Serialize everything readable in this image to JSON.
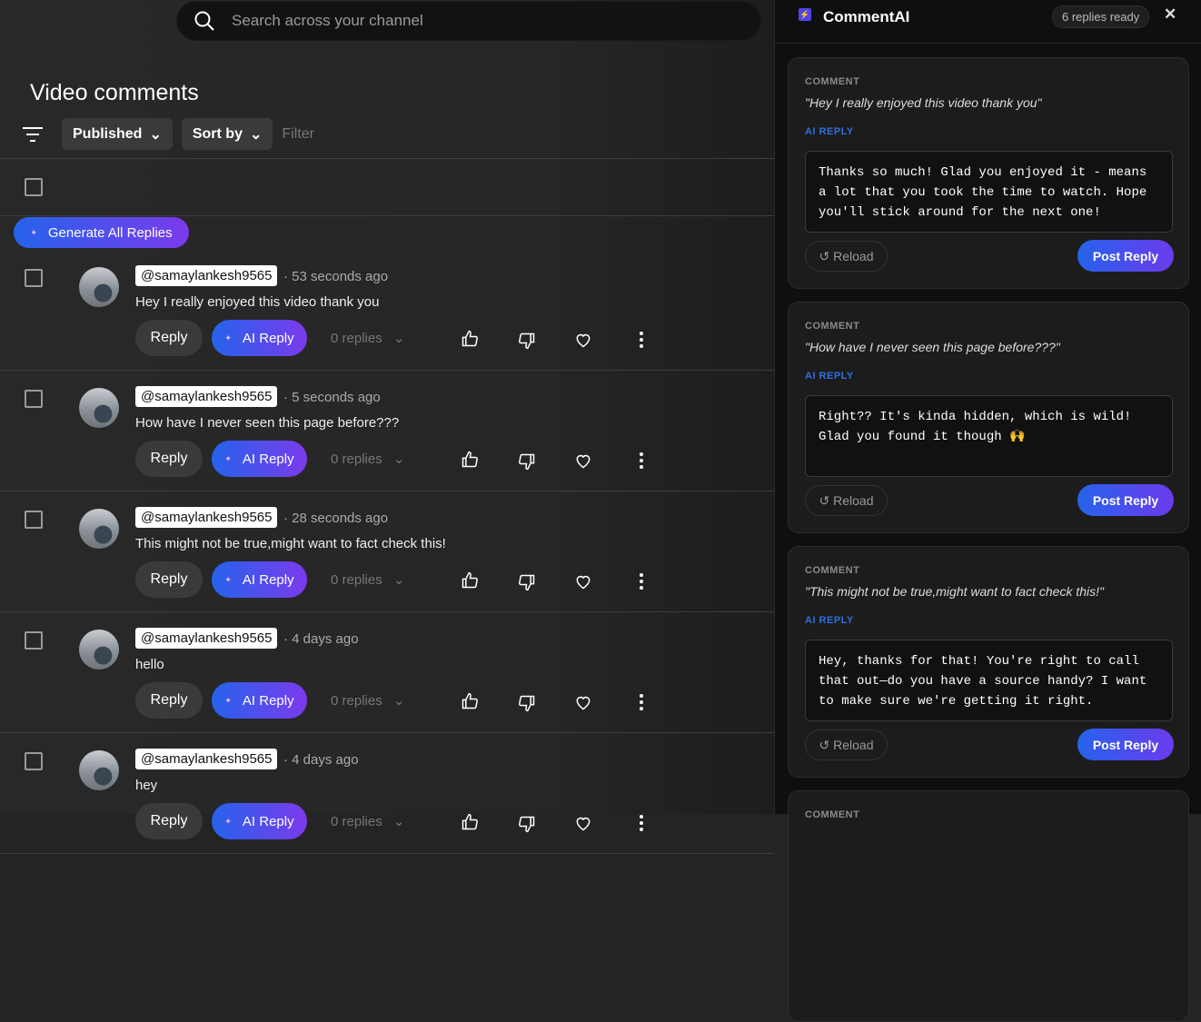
{
  "search": {
    "placeholder": "Search across your channel"
  },
  "page_title": "Video comments",
  "filters": {
    "published": "Published",
    "sort_by": "Sort by",
    "filter_placeholder": "Filter"
  },
  "generate_all": "Generate All Replies",
  "comments": [
    {
      "author": "@samaylankesh9565",
      "time": "53 seconds ago",
      "text": "Hey I really  enjoyed this video thank you",
      "reply": "Reply",
      "ai_reply": "AI Reply",
      "replies": "0 replies"
    },
    {
      "author": "@samaylankesh9565",
      "time": "5 seconds ago",
      "text": "How have I never seen this page before???",
      "reply": "Reply",
      "ai_reply": "AI Reply",
      "replies": "0 replies"
    },
    {
      "author": "@samaylankesh9565",
      "time": "28 seconds ago",
      "text": "This might not be true,might want to fact check this!",
      "reply": "Reply",
      "ai_reply": "AI Reply",
      "replies": "0 replies"
    },
    {
      "author": "@samaylankesh9565",
      "time": "4 days ago",
      "text": "hello",
      "reply": "Reply",
      "ai_reply": "AI Reply",
      "replies": "0 replies"
    },
    {
      "author": "@samaylankesh9565",
      "time": "4 days ago",
      "text": "hey",
      "reply": "Reply",
      "ai_reply": "AI Reply",
      "replies": "0 replies"
    }
  ],
  "panel": {
    "title": "CommentAI",
    "status": "6 replies ready",
    "close": "✕",
    "cards": [
      {
        "comment_label": "COMMENT",
        "comment": "\"Hey I really enjoyed this video thank you\"",
        "ai_label": "AI REPLY",
        "reply": "Thanks so much! Glad you enjoyed it - means a lot that you took the time to watch. Hope you'll stick around for the next one!",
        "reload": "↺ Reload",
        "post": "Post Reply"
      },
      {
        "comment_label": "COMMENT",
        "comment": "\"How have I never seen this page before???\"",
        "ai_label": "AI REPLY",
        "reply": "Right?? It's kinda hidden, which is wild! Glad you found it though 🙌",
        "reload": "↺ Reload",
        "post": "Post Reply"
      },
      {
        "comment_label": "COMMENT",
        "comment": "\"This might not be true,might want to fact check this!\"",
        "ai_label": "AI REPLY",
        "reply": "Hey, thanks for that! You're right to call that out—do you have a source handy? I want to make sure we're getting it right.",
        "reload": "↺ Reload",
        "post": "Post Reply"
      },
      {
        "comment_label": "COMMENT"
      }
    ]
  },
  "colors": {
    "accent_start": "#2563eb",
    "accent_end": "#7c3aed",
    "ai_label": "#2f6fe0"
  }
}
